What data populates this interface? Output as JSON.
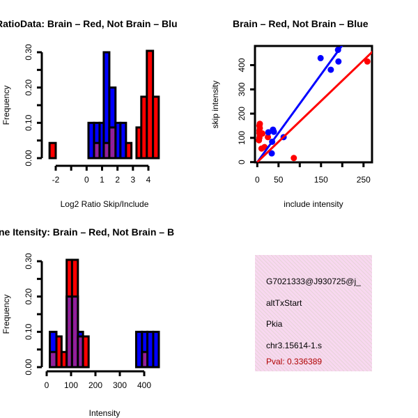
{
  "colors": {
    "red": "#ff0000",
    "blue": "#0000ff",
    "purple": "#8b1a8b",
    "pval": "#b00000",
    "panel": "#f8d8f0"
  },
  "chart_data": [
    {
      "type": "bar",
      "title": "RatioData: Brain – Red, Not Brain – Blu",
      "xlabel": "Log2 Ratio Skip/Include",
      "ylabel": "Frequency",
      "xlim": [
        -2,
        4
      ],
      "ylim": [
        0,
        0.3
      ],
      "xticks": [
        -2,
        -1,
        0,
        1,
        2,
        3,
        4
      ],
      "xtick_labels": [
        "-2",
        "",
        "0",
        "1",
        "2",
        "3",
        "4"
      ],
      "yticks": [
        0,
        0.05,
        0.1,
        0.15,
        0.2,
        0.25,
        0.3
      ],
      "ytick_labels": [
        "0.00",
        "",
        "0.10",
        "",
        "0.20",
        "",
        "0.30"
      ],
      "series": [
        {
          "name": "Not Brain",
          "color": "blue",
          "bars": [
            [
              0.12,
              0.48,
              0.1
            ],
            [
              0.48,
              0.84,
              0.1
            ],
            [
              0.84,
              1.11,
              0.1
            ],
            [
              1.11,
              1.47,
              0.3
            ],
            [
              1.47,
              1.87,
              0.2
            ],
            [
              1.87,
              2.19,
              0.1
            ],
            [
              2.19,
              2.55,
              0.1
            ]
          ]
        },
        {
          "name": "Brain",
          "color": "red",
          "bars": [
            [
              -2.4,
              -2.0,
              0.043
            ],
            [
              0.48,
              0.84,
              0.043
            ],
            [
              1.11,
              1.47,
              0.043
            ],
            [
              1.47,
              1.87,
              0.087
            ],
            [
              2.55,
              2.9,
              0.043
            ],
            [
              3.23,
              3.54,
              0.087
            ],
            [
              3.54,
              3.9,
              0.174
            ],
            [
              3.9,
              4.3,
              0.304
            ],
            [
              4.3,
              4.67,
              0.174
            ]
          ]
        }
      ]
    },
    {
      "type": "scatter",
      "title": "Brain – Red, Not Brain – Blue",
      "xlabel": "include intensity",
      "ylabel": "skip intensity",
      "xlim": [
        -8,
        270
      ],
      "ylim": [
        0,
        470
      ],
      "xticks": [
        0,
        50,
        100,
        150,
        200,
        250
      ],
      "xtick_labels": [
        "0",
        "50",
        "",
        "150",
        "",
        "250"
      ],
      "yticks": [
        0,
        100,
        200,
        300,
        400
      ],
      "ytick_labels": [
        "0",
        "100",
        "200",
        "300",
        "400"
      ],
      "series": [
        {
          "name": "Not Brain",
          "color": "blue",
          "points": [
            [
              26,
              123
            ],
            [
              37,
              134
            ],
            [
              39,
              125
            ],
            [
              35,
              84
            ],
            [
              34,
              36
            ],
            [
              62,
              103
            ],
            [
              149,
              429
            ],
            [
              173,
              381
            ],
            [
              190,
              463
            ],
            [
              191,
              415
            ]
          ],
          "fit": {
            "slope": 2.41,
            "intercept": 0
          }
        },
        {
          "name": "Brain",
          "color": "red",
          "points": [
            [
              4,
              90
            ],
            [
              5,
              100
            ],
            [
              6,
              110
            ],
            [
              5,
              120
            ],
            [
              5,
              130
            ],
            [
              6,
              140
            ],
            [
              5,
              150
            ],
            [
              6,
              158
            ],
            [
              8,
              115
            ],
            [
              12,
              118
            ],
            [
              10,
              56
            ],
            [
              17,
              62
            ],
            [
              25,
              103
            ],
            [
              86,
              17
            ],
            [
              259,
              415
            ]
          ],
          "fit": {
            "slope": 1.68,
            "intercept": 0
          }
        }
      ]
    },
    {
      "type": "bar",
      "title": "ne Itensity: Brain – Red, Not Brain – B",
      "xlabel": "Intensity",
      "ylabel": "Frequency",
      "xlim": [
        0,
        400
      ],
      "ylim": [
        0,
        0.3
      ],
      "xticks": [
        0,
        100,
        200,
        300,
        400
      ],
      "xtick_labels": [
        "0",
        "100",
        "200",
        "300",
        "400"
      ],
      "yticks": [
        0,
        0.05,
        0.1,
        0.15,
        0.2,
        0.25,
        0.3
      ],
      "ytick_labels": [
        "0.00",
        "",
        "0.10",
        "",
        "0.20",
        "",
        "0.30"
      ],
      "series": [
        {
          "name": "Not Brain",
          "color": "blue",
          "bars": [
            [
              13,
              40,
              0.1
            ],
            [
              82,
              104,
              0.2
            ],
            [
              104,
              128,
              0.2
            ],
            [
              128,
              149,
              0.1
            ],
            [
              367,
              391,
              0.1
            ],
            [
              391,
              413,
              0.1
            ],
            [
              413,
              437,
              0.1
            ],
            [
              437,
              460,
              0.1
            ]
          ]
        },
        {
          "name": "Brain",
          "color": "red",
          "bars": [
            [
              13,
              40,
              0.043
            ],
            [
              40,
              61,
              0.087
            ],
            [
              61,
              82,
              0.043
            ],
            [
              82,
              104,
              0.304
            ],
            [
              104,
              128,
              0.304
            ],
            [
              128,
              149,
              0.087
            ],
            [
              149,
              172,
              0.087
            ],
            [
              391,
              413,
              0.043
            ]
          ]
        }
      ]
    }
  ],
  "info_panel": {
    "lines": [
      "G7021333@J930725@j_",
      "altTxStart",
      "Pkia",
      "chr3.15614-1.s"
    ],
    "pval": "Pval: 0.336389"
  }
}
